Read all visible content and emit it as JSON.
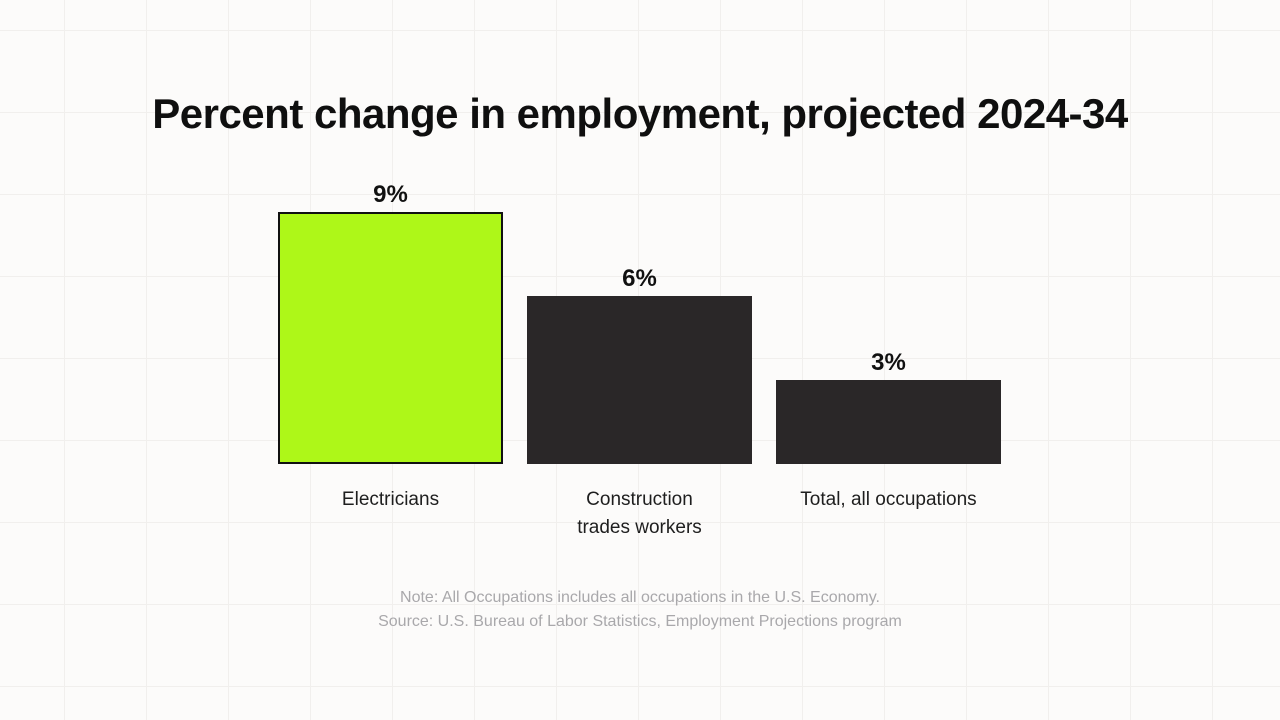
{
  "chart_data": {
    "type": "bar",
    "title": "Percent change in employment, projected 2024-34",
    "categories": [
      "Electricians",
      "Construction trades workers",
      "Total, all occupations"
    ],
    "category_labels": [
      "Electricians",
      "Construction\ntrades workers",
      "Total, all occupations"
    ],
    "values": [
      9,
      6,
      3
    ],
    "value_labels": [
      "9%",
      "6%",
      "3%"
    ],
    "unit": "percent",
    "ylim": [
      0,
      9
    ],
    "bar_colors": [
      "#AEF718",
      "#2A2728",
      "#2A2728"
    ],
    "highlight_index": 0,
    "highlight_border_color": "#111111",
    "grid": false,
    "legend": "none",
    "xlabel": "",
    "ylabel": ""
  },
  "footer": {
    "note": "Note: All Occupations includes all occupations in the U.S. Economy.",
    "source": "Source: U.S. Bureau of Labor Statistics, Employment Projections program"
  },
  "colors": {
    "background": "#FCFBFA",
    "grid_line": "#F1EFED",
    "title_text": "#0F0F0F",
    "category_text": "#1E1E1E",
    "note_text": "#A9A8AB"
  }
}
